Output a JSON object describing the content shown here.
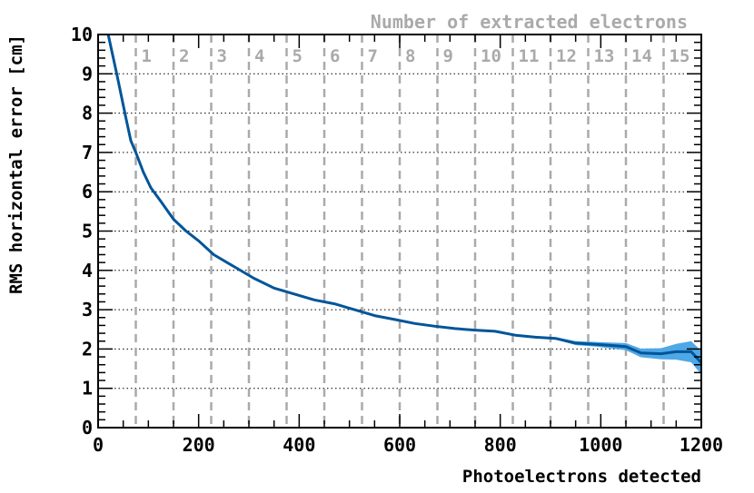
{
  "chart_data": {
    "type": "line",
    "title": "",
    "xlabel": "Photoelectrons detected",
    "ylabel": "RMS horizontal error [cm]",
    "top_axis_label": "Number of extracted electrons",
    "xlim": [
      0,
      1200
    ],
    "ylim": [
      0,
      10
    ],
    "x_ticks": [
      0,
      200,
      400,
      600,
      800,
      1000,
      1200
    ],
    "x_tick_labels": [
      "0",
      "200",
      "400",
      "600",
      "800",
      "1000",
      "1200"
    ],
    "y_ticks": [
      0,
      1,
      2,
      3,
      4,
      5,
      6,
      7,
      8,
      9,
      10
    ],
    "y_tick_labels": [
      "0",
      "1",
      "2",
      "3",
      "4",
      "5",
      "6",
      "7",
      "8",
      "9",
      "10"
    ],
    "grid": {
      "horizontal_dotted": true
    },
    "electron_markers": {
      "x": [
        75,
        150,
        225,
        300,
        375,
        450,
        525,
        600,
        675,
        750,
        825,
        900,
        975,
        1050,
        1125
      ],
      "labels": [
        "1",
        "2",
        "3",
        "4",
        "5",
        "6",
        "7",
        "8",
        "9",
        "10",
        "11",
        "12",
        "13",
        "14",
        "15"
      ]
    },
    "series": [
      {
        "x": [
          20,
          37,
          55,
          65,
          75,
          90,
          105,
          125,
          150,
          175,
          200,
          230,
          270,
          310,
          350,
          390,
          430,
          470,
          510,
          550,
          590,
          630,
          670,
          710,
          750,
          790,
          830,
          870,
          910,
          950,
          990,
          1030,
          1050,
          1080,
          1120,
          1150,
          1180,
          1200
        ],
        "y": [
          10.0,
          9.0,
          7.9,
          7.3,
          7.0,
          6.5,
          6.1,
          5.75,
          5.3,
          5.0,
          4.75,
          4.4,
          4.1,
          3.8,
          3.55,
          3.4,
          3.25,
          3.15,
          3.0,
          2.85,
          2.75,
          2.65,
          2.58,
          2.52,
          2.48,
          2.45,
          2.35,
          2.3,
          2.27,
          2.15,
          2.12,
          2.08,
          2.06,
          1.9,
          1.88,
          1.93,
          1.93,
          1.65
        ],
        "band_upper": [
          10.0,
          9.0,
          7.9,
          7.3,
          7.0,
          6.5,
          6.1,
          5.75,
          5.3,
          5.0,
          4.75,
          4.4,
          4.1,
          3.8,
          3.55,
          3.4,
          3.25,
          3.15,
          3.0,
          2.85,
          2.75,
          2.65,
          2.58,
          2.52,
          2.48,
          2.45,
          2.35,
          2.3,
          2.3,
          2.2,
          2.18,
          2.16,
          2.15,
          2.01,
          2.02,
          2.13,
          2.2,
          1.95
        ],
        "band_lower": [
          10.0,
          9.0,
          7.9,
          7.3,
          7.0,
          6.5,
          6.1,
          5.75,
          5.3,
          5.0,
          4.75,
          4.4,
          4.1,
          3.8,
          3.55,
          3.4,
          3.25,
          3.15,
          3.0,
          2.85,
          2.75,
          2.65,
          2.58,
          2.52,
          2.48,
          2.45,
          2.35,
          2.3,
          2.24,
          2.1,
          2.06,
          2.0,
          1.97,
          1.79,
          1.74,
          1.73,
          1.66,
          1.35
        ],
        "color": "#005599",
        "band_color": "#4fa8e6"
      }
    ],
    "colors": {
      "line": "#005599",
      "band": "#4fa8e6",
      "marker_lines": "#aaaaaa",
      "grid": "#000000"
    }
  }
}
